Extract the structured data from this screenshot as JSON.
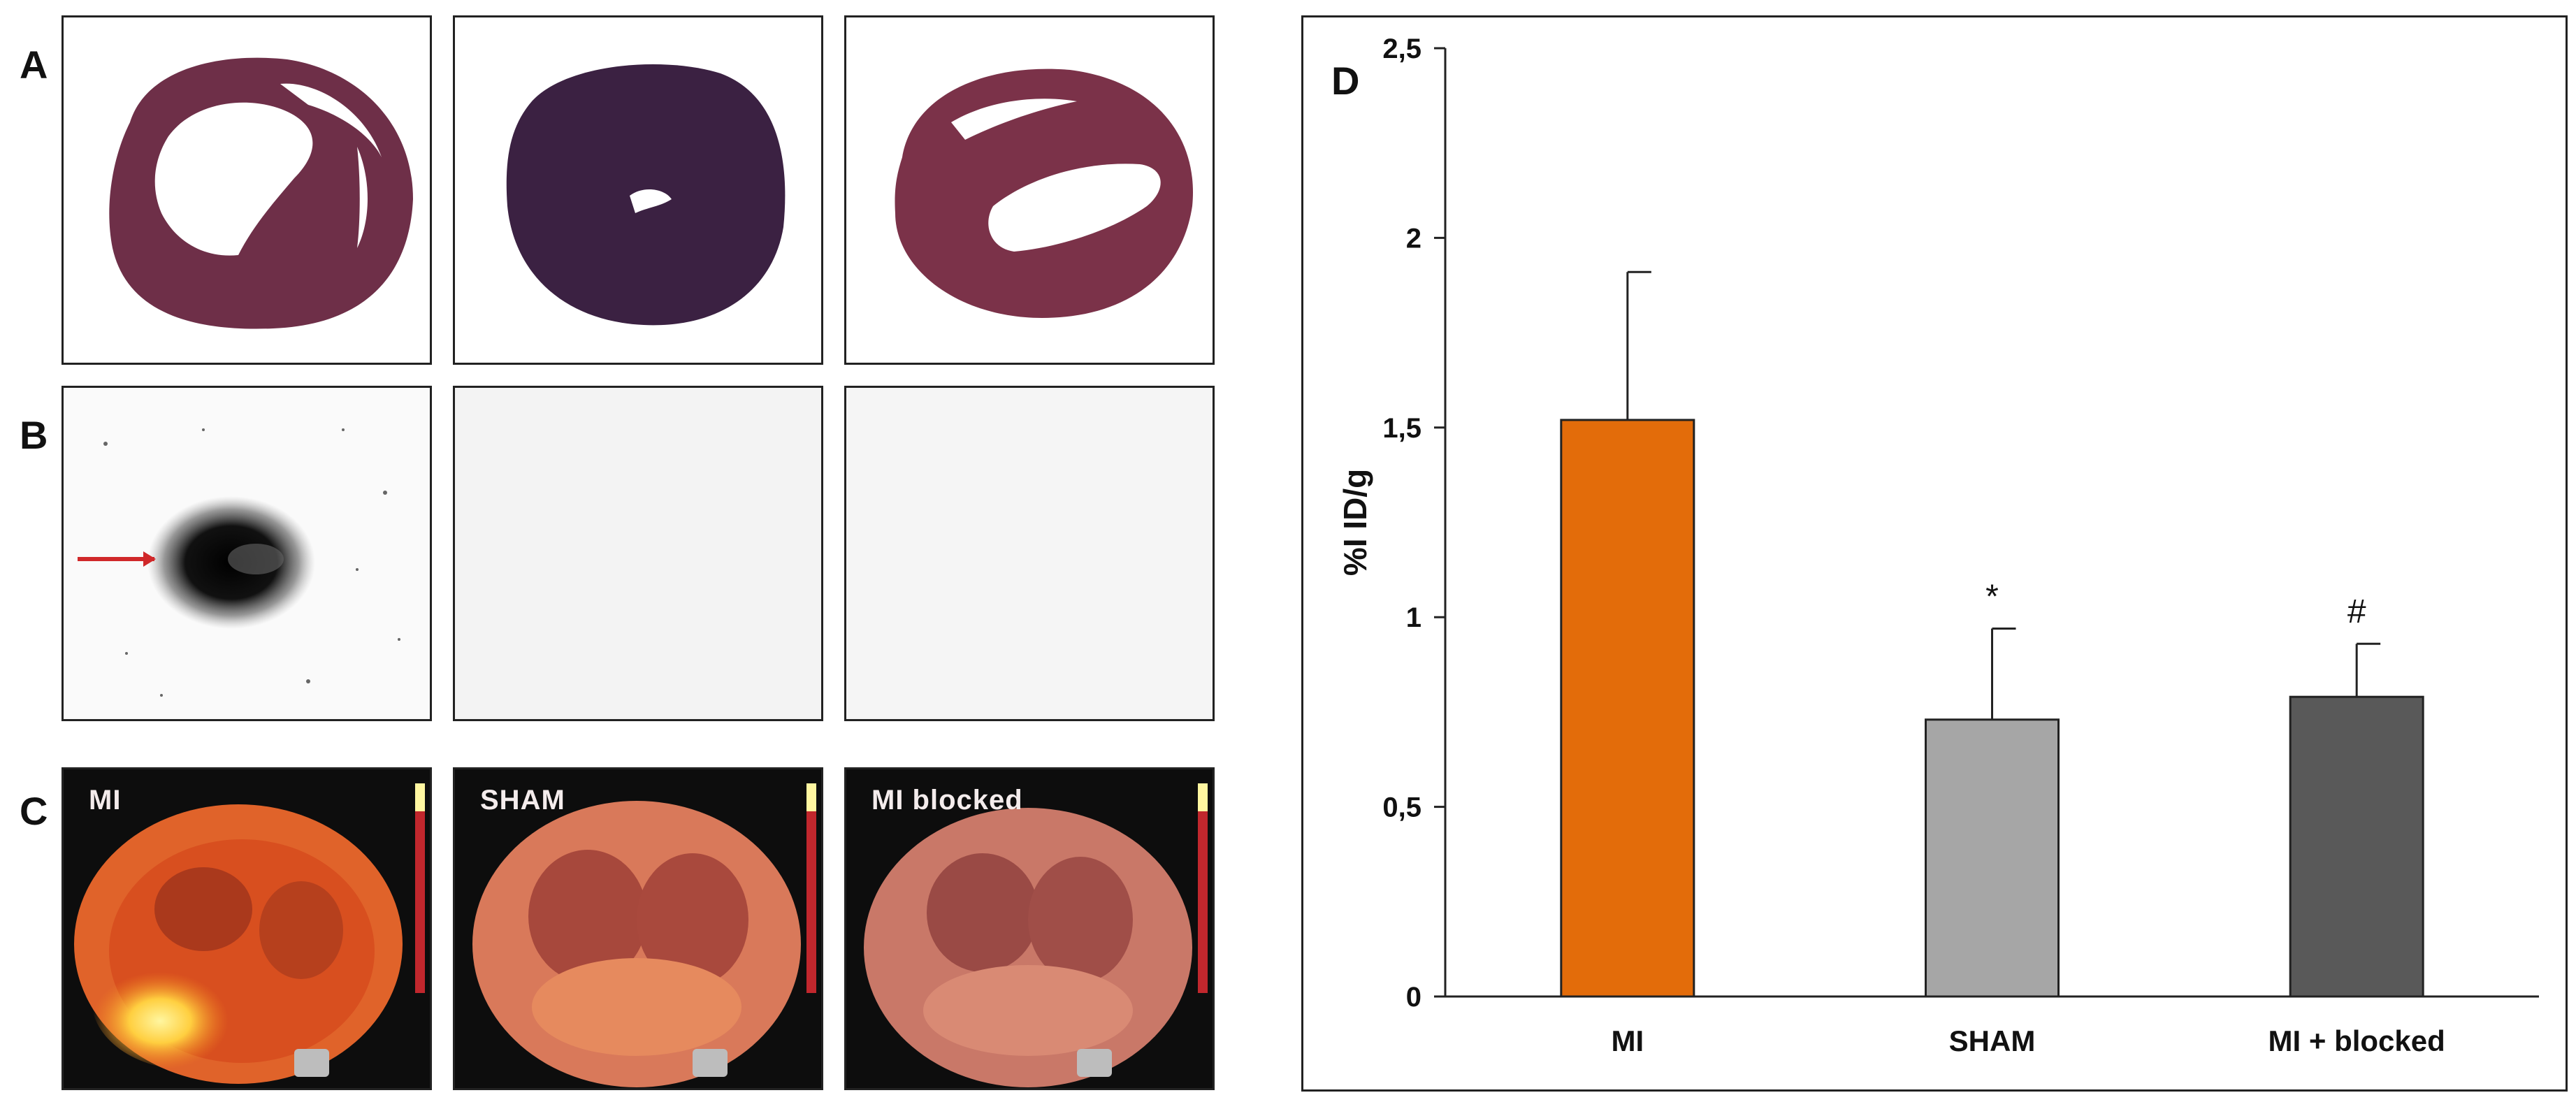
{
  "figure": {
    "panel_labels": [
      "A",
      "B",
      "C",
      "D"
    ],
    "pet_labels": [
      "MI",
      "SHAM",
      "MI  blocked"
    ]
  },
  "chart_data": {
    "type": "bar",
    "panel_label": "D",
    "categories": [
      "MI",
      "SHAM",
      "MI + blocked"
    ],
    "values": [
      1.52,
      0.73,
      0.79
    ],
    "errors": [
      0.39,
      0.24,
      0.14
    ],
    "significance": [
      "",
      "*",
      "#"
    ],
    "colors": [
      "#e36c0a",
      "#a6a6a6",
      "#595959"
    ],
    "ylabel": "%I ID/g",
    "xlabel": "",
    "ylim": [
      0,
      2.5
    ],
    "yticks": [
      0,
      0.5,
      1,
      1.5,
      2,
      2.5
    ],
    "ytick_labels": [
      "0",
      "0,5",
      "1",
      "1,5",
      "2",
      "2,5"
    ],
    "grid": false,
    "legend": "none"
  }
}
